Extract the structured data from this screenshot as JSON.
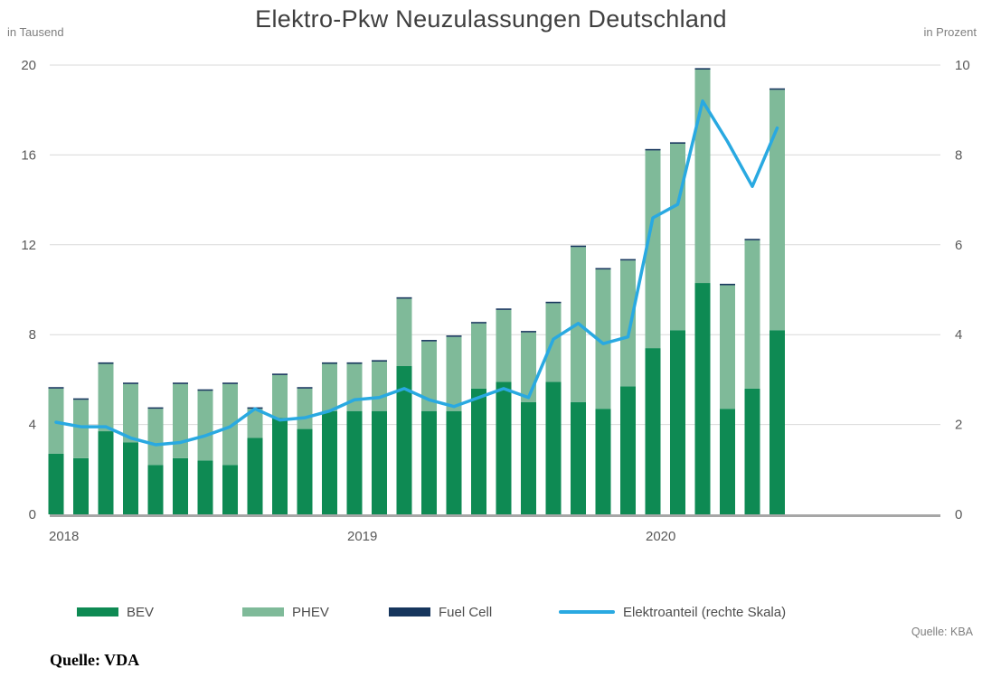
{
  "title": "Elektro-Pkw Neuzulassungen Deutschland",
  "left_axis_unit": "in Tausend",
  "right_axis_unit": "in Prozent",
  "source_chart": "Quelle: KBA",
  "source_page": "Quelle: VDA",
  "legend": [
    {
      "label": "BEV",
      "color": "#0e8a53",
      "type": "box"
    },
    {
      "label": "PHEV",
      "color": "#7fba99",
      "type": "box"
    },
    {
      "label": "Fuel Cell",
      "color": "#17365d",
      "type": "box"
    },
    {
      "label": "Elektroanteil (rechte Skala)",
      "color": "#29a9e1",
      "type": "line"
    }
  ],
  "chart_data": {
    "type": "bar",
    "subtype": "stacked bars with secondary-axis line",
    "title": "Elektro-Pkw Neuzulassungen Deutschland",
    "x_months": [
      "2018-01",
      "2018-02",
      "2018-03",
      "2018-04",
      "2018-05",
      "2018-06",
      "2018-07",
      "2018-08",
      "2018-09",
      "2018-10",
      "2018-11",
      "2018-12",
      "2019-01",
      "2019-02",
      "2019-03",
      "2019-04",
      "2019-05",
      "2019-06",
      "2019-07",
      "2019-08",
      "2019-09",
      "2019-10",
      "2019-11",
      "2019-12",
      "2020-01",
      "2020-02",
      "2020-03",
      "2020-04",
      "2020-05",
      "2020-06"
    ],
    "x_year_labels": [
      {
        "label": "2018",
        "month_index": 0
      },
      {
        "label": "2019",
        "month_index": 12
      },
      {
        "label": "2020",
        "month_index": 24
      }
    ],
    "series": [
      {
        "name": "BEV",
        "axis": "left",
        "unit": "Tausend",
        "values": [
          2.7,
          2.5,
          3.7,
          3.2,
          2.2,
          2.5,
          2.4,
          2.2,
          3.4,
          4.3,
          3.8,
          4.6,
          4.6,
          4.6,
          6.6,
          4.6,
          4.6,
          5.6,
          5.9,
          5.0,
          5.9,
          5.0,
          4.7,
          5.7,
          7.4,
          8.2,
          10.3,
          4.7,
          5.6,
          8.2
        ]
      },
      {
        "name": "PHEV",
        "axis": "left",
        "unit": "Tausend",
        "values": [
          2.9,
          2.6,
          3.0,
          2.6,
          2.5,
          3.3,
          3.1,
          3.6,
          1.3,
          1.9,
          1.8,
          2.1,
          2.1,
          2.2,
          3.0,
          3.1,
          3.3,
          2.9,
          3.2,
          3.1,
          3.5,
          6.9,
          6.2,
          5.6,
          8.8,
          8.3,
          9.5,
          5.5,
          6.6,
          10.7
        ]
      },
      {
        "name": "Fuel Cell",
        "axis": "left",
        "unit": "Tausend",
        "values": [
          0.05,
          0.05,
          0.05,
          0.05,
          0.05,
          0.05,
          0.05,
          0.05,
          0.05,
          0.05,
          0.05,
          0.05,
          0.05,
          0.05,
          0.05,
          0.05,
          0.05,
          0.05,
          0.05,
          0.05,
          0.05,
          0.05,
          0.05,
          0.05,
          0.05,
          0.05,
          0.05,
          0.05,
          0.05,
          0.05
        ]
      },
      {
        "name": "Elektroanteil (rechte Skala)",
        "axis": "right",
        "unit": "Prozent",
        "values": [
          2.05,
          1.95,
          1.95,
          1.7,
          1.55,
          1.6,
          1.75,
          1.95,
          2.35,
          2.1,
          2.15,
          2.3,
          2.55,
          2.6,
          2.8,
          2.55,
          2.4,
          2.6,
          2.8,
          2.6,
          3.9,
          4.25,
          3.8,
          3.95,
          6.6,
          6.9,
          9.2,
          8.3,
          7.3,
          8.6
        ]
      }
    ],
    "left_axis": {
      "label": "in Tausend",
      "min": 0,
      "max": 20,
      "ticks": [
        0,
        4,
        8,
        12,
        16,
        20
      ]
    },
    "right_axis": {
      "label": "in Prozent",
      "min": 0,
      "max": 10,
      "ticks": [
        0,
        2,
        4,
        6,
        8,
        10
      ]
    },
    "grid": "horizontal",
    "legend_position": "bottom",
    "colors": {
      "bev": "#0e8a53",
      "phev": "#7fba99",
      "fuel_cell": "#17365d",
      "line": "#29a9e1",
      "gridline": "#d9d9d9",
      "baseline": "#a6a6a6"
    }
  }
}
